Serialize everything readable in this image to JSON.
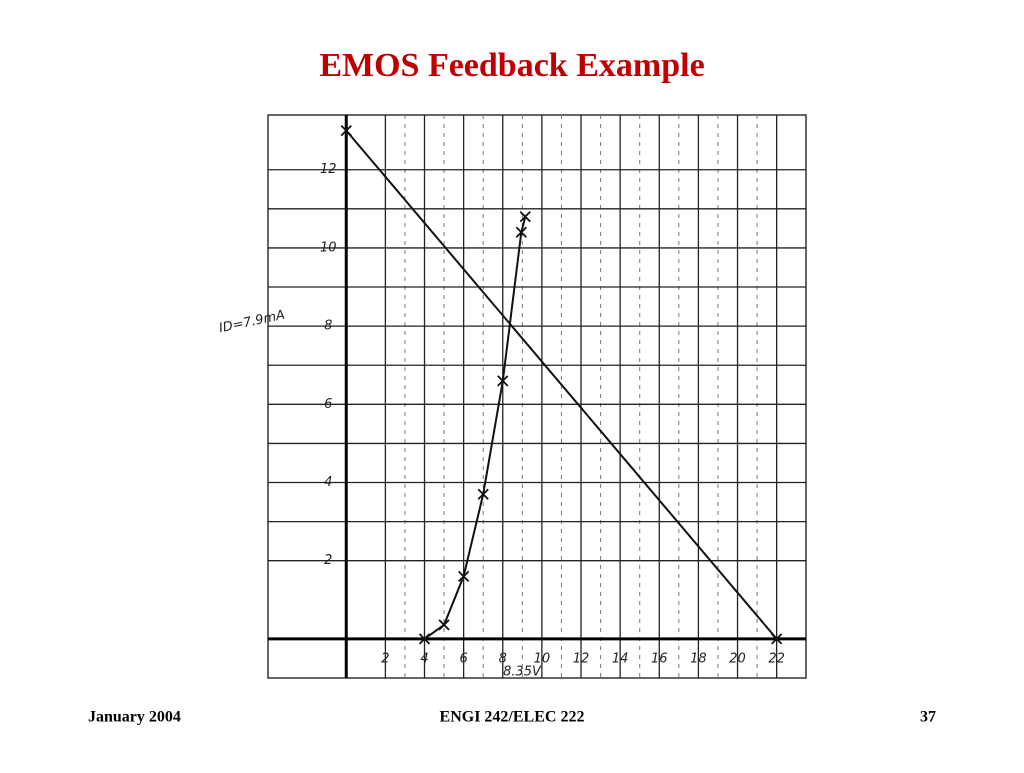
{
  "header": {
    "title": "EMOS Feedback Example"
  },
  "chart_data": {
    "type": "line",
    "series": [
      {
        "color": "#111111",
        "x": [
          0,
          22
        ],
        "values": [
          13,
          0
        ]
      },
      {
        "color": "#111111",
        "x": [
          4,
          5,
          6,
          7,
          8,
          8.95,
          9.15
        ],
        "values": [
          0,
          0.36,
          1.6,
          3.7,
          6.6,
          10.4,
          10.8
        ]
      }
    ],
    "xlim": [
      -4,
      23.5
    ],
    "ylim": [
      -1,
      13.4
    ],
    "xticks": [
      2,
      4,
      6,
      8,
      10,
      12,
      14,
      16,
      18,
      20,
      22
    ],
    "yticks": [
      2,
      4,
      6,
      8,
      10,
      12
    ],
    "grid": true,
    "annotations": [
      "ID=7.9mA",
      "8.35V"
    ]
  },
  "footer": {
    "left": "January 2004",
    "center": "ENGI 242/ELEC 222",
    "right": "37"
  }
}
